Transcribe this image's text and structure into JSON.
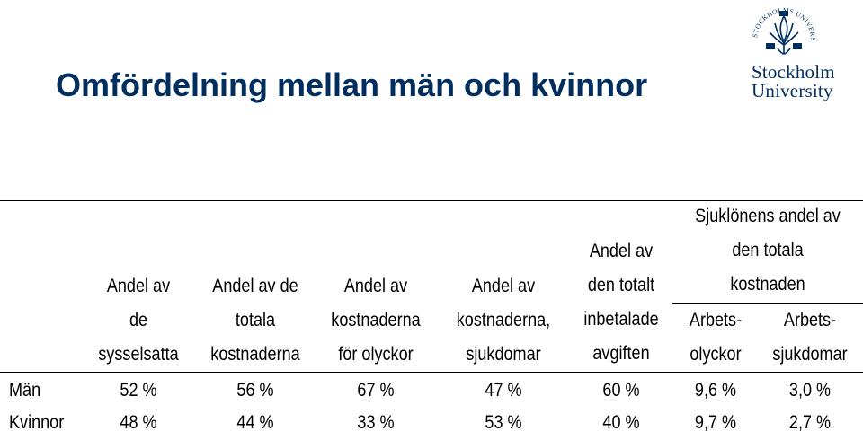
{
  "slide": {
    "title": "Omfördelning mellan män och kvinnor"
  },
  "logo": {
    "line1": "Stockholm",
    "line2": "University",
    "seal_text": "STOCKHOLMS UNIVERSITET",
    "color": "#002f5f"
  },
  "table": {
    "headers": [
      {
        "lines": [
          "Andel av",
          "de",
          "sysselsatta"
        ]
      },
      {
        "lines": [
          "Andel av de",
          "totala",
          "kostnaderna"
        ]
      },
      {
        "lines": [
          "Andel av",
          "kostnaderna",
          "för olyckor"
        ]
      },
      {
        "lines": [
          "Andel av",
          "kostnaderna,",
          "sjukdomar"
        ]
      },
      {
        "lines": [
          "Andel av",
          "den totalt",
          "inbetalade",
          "avgiften"
        ]
      }
    ],
    "group_header": {
      "lines": [
        "Sjuklönens andel av",
        "den totala",
        "kostnaden"
      ],
      "subheaders": [
        {
          "lines": [
            "Arbets-",
            "olyckor"
          ]
        },
        {
          "lines": [
            "Arbets-",
            "sjukdomar"
          ]
        }
      ]
    },
    "rows": [
      {
        "label": "Män",
        "values": [
          "52 %",
          "56 %",
          "67 %",
          "47 %",
          "60 %",
          "9,6 %",
          "3,0 %"
        ]
      },
      {
        "label": "Kvinnor",
        "values": [
          "48 %",
          "44 %",
          "33 %",
          "53 %",
          "40 %",
          "9,7 %",
          "2,7 %"
        ]
      }
    ]
  }
}
